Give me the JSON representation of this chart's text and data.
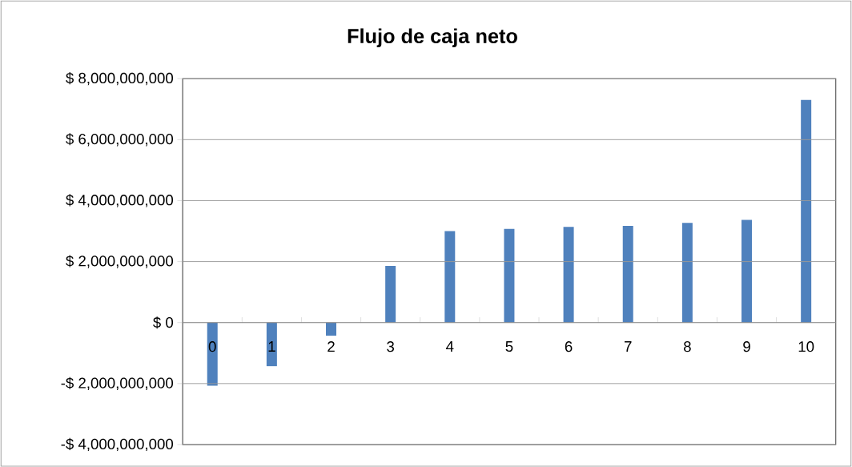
{
  "chart_data": {
    "type": "bar",
    "title": "Flujo de caja neto",
    "categories": [
      "0",
      "1",
      "2",
      "3",
      "4",
      "5",
      "6",
      "7",
      "8",
      "9",
      "10"
    ],
    "values": [
      -2070000000,
      -1430000000,
      -430000000,
      1860000000,
      3000000000,
      3070000000,
      3140000000,
      3170000000,
      3270000000,
      3370000000,
      7300000000
    ],
    "color": "#4f81bd",
    "ylim": [
      -4000000000,
      8000000000
    ],
    "yticks": [
      {
        "value": -4000000000,
        "label": "-$ 4,000,000,000"
      },
      {
        "value": -2000000000,
        "label": "-$ 2,000,000,000"
      },
      {
        "value": 0,
        "label": "$ 0"
      },
      {
        "value": 2000000000,
        "label": "$ 2,000,000,000"
      },
      {
        "value": 4000000000,
        "label": "$ 4,000,000,000"
      },
      {
        "value": 6000000000,
        "label": "$ 6,000,000,000"
      },
      {
        "value": 8000000000,
        "label": "$ 8,000,000,000"
      }
    ],
    "grid": "y"
  }
}
